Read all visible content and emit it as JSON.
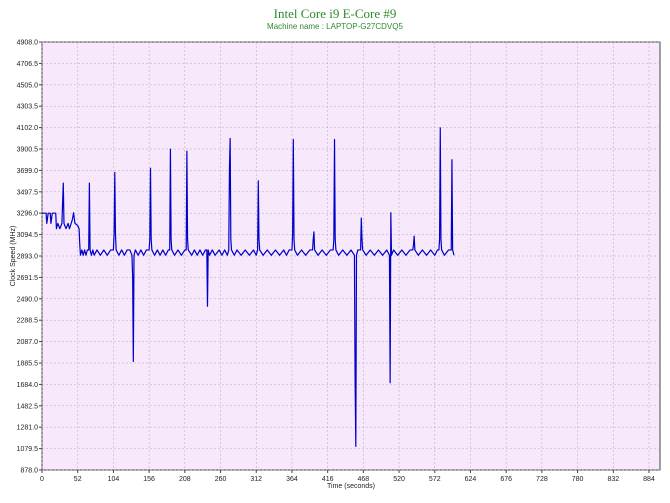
{
  "chart_data": {
    "type": "line",
    "title": "Intel Core i9 E-Core #9",
    "subtitle": "Machine name : LAPTOP-G27CDVQ5",
    "xlabel": "Time (seconds)",
    "ylabel": "Clock Speed (MHz)",
    "xlim": [
      0,
      900
    ],
    "ylim": [
      878.0,
      4908.0
    ],
    "x_ticks": [
      0,
      52,
      104,
      156,
      208,
      260,
      312,
      364,
      416,
      468,
      520,
      572,
      624,
      676,
      728,
      780,
      832,
      884
    ],
    "y_ticks": [
      "878.0",
      "1079.5",
      "1281.0",
      "1482.5",
      "1684.0",
      "1885.5",
      "2087.0",
      "2288.5",
      "2490.0",
      "2691.5",
      "2893.0",
      "3094.5",
      "3296.0",
      "3497.5",
      "3699.0",
      "3900.5",
      "4102.0",
      "4303.5",
      "4505.0",
      "4706.5",
      "4908.0"
    ],
    "grid": true,
    "series": [
      {
        "color": "#0000c8",
        "points": [
          [
            0,
            3296
          ],
          [
            6,
            3296
          ],
          [
            7,
            3200
          ],
          [
            9,
            3296
          ],
          [
            12,
            3296
          ],
          [
            13,
            3200
          ],
          [
            15,
            3296
          ],
          [
            20,
            3296
          ],
          [
            21,
            3150
          ],
          [
            23,
            3200
          ],
          [
            26,
            3150
          ],
          [
            29,
            3200
          ],
          [
            31,
            3580
          ],
          [
            32,
            3200
          ],
          [
            35,
            3150
          ],
          [
            38,
            3200
          ],
          [
            40,
            3150
          ],
          [
            44,
            3230
          ],
          [
            46,
            3300
          ],
          [
            48,
            3200
          ],
          [
            52,
            3180
          ],
          [
            54,
            3150
          ],
          [
            55,
            3000
          ],
          [
            56,
            2900
          ],
          [
            58,
            2950
          ],
          [
            60,
            2900
          ],
          [
            62,
            2950
          ],
          [
            64,
            2900
          ],
          [
            66,
            2950
          ],
          [
            68,
            2950
          ],
          [
            69,
            3580
          ],
          [
            70,
            2950
          ],
          [
            72,
            2900
          ],
          [
            74,
            2950
          ],
          [
            76,
            2900
          ],
          [
            80,
            2950
          ],
          [
            85,
            2900
          ],
          [
            90,
            2950
          ],
          [
            95,
            2900
          ],
          [
            100,
            2950
          ],
          [
            104,
            2950
          ],
          [
            105,
            3100
          ],
          [
            106,
            3680
          ],
          [
            107,
            3100
          ],
          [
            108,
            2950
          ],
          [
            112,
            2900
          ],
          [
            116,
            2950
          ],
          [
            120,
            2900
          ],
          [
            124,
            2950
          ],
          [
            128,
            2950
          ],
          [
            131,
            2900
          ],
          [
            132,
            2700
          ],
          [
            133,
            1900
          ],
          [
            134,
            2900
          ],
          [
            136,
            2950
          ],
          [
            140,
            2900
          ],
          [
            144,
            2950
          ],
          [
            148,
            2900
          ],
          [
            152,
            2950
          ],
          [
            156,
            2950
          ],
          [
            157,
            3050
          ],
          [
            158,
            3720
          ],
          [
            159,
            3050
          ],
          [
            160,
            2950
          ],
          [
            164,
            2900
          ],
          [
            168,
            2950
          ],
          [
            172,
            2900
          ],
          [
            176,
            2950
          ],
          [
            180,
            2900
          ],
          [
            184,
            2950
          ],
          [
            186,
            2950
          ],
          [
            187,
            3900
          ],
          [
            188,
            3050
          ],
          [
            189,
            2950
          ],
          [
            193,
            2900
          ],
          [
            198,
            2950
          ],
          [
            203,
            2900
          ],
          [
            208,
            2950
          ],
          [
            210,
            2950
          ],
          [
            211,
            3880
          ],
          [
            212,
            3050
          ],
          [
            213,
            2950
          ],
          [
            218,
            2900
          ],
          [
            222,
            2950
          ],
          [
            226,
            2900
          ],
          [
            230,
            2950
          ],
          [
            234,
            2900
          ],
          [
            238,
            2950
          ],
          [
            240,
            2950
          ],
          [
            241,
            2420
          ],
          [
            242,
            2950
          ],
          [
            244,
            2900
          ],
          [
            248,
            2950
          ],
          [
            252,
            2900
          ],
          [
            258,
            2950
          ],
          [
            262,
            2900
          ],
          [
            266,
            2950
          ],
          [
            270,
            2900
          ],
          [
            272,
            2950
          ],
          [
            273,
            3720
          ],
          [
            274,
            4000
          ],
          [
            275,
            3050
          ],
          [
            276,
            2950
          ],
          [
            280,
            2900
          ],
          [
            284,
            2950
          ],
          [
            290,
            2900
          ],
          [
            296,
            2950
          ],
          [
            302,
            2900
          ],
          [
            308,
            2950
          ],
          [
            312,
            2900
          ],
          [
            314,
            2950
          ],
          [
            315,
            3600
          ],
          [
            316,
            3050
          ],
          [
            317,
            2950
          ],
          [
            322,
            2900
          ],
          [
            328,
            2950
          ],
          [
            334,
            2900
          ],
          [
            340,
            2950
          ],
          [
            346,
            2900
          ],
          [
            352,
            2950
          ],
          [
            356,
            2900
          ],
          [
            360,
            2950
          ],
          [
            364,
            2950
          ],
          [
            365,
            3100
          ],
          [
            366,
            3990
          ],
          [
            367,
            3050
          ],
          [
            368,
            2950
          ],
          [
            372,
            2900
          ],
          [
            378,
            2950
          ],
          [
            384,
            2900
          ],
          [
            390,
            2950
          ],
          [
            394,
            2950
          ],
          [
            395,
            3050
          ],
          [
            396,
            3120
          ],
          [
            397,
            2950
          ],
          [
            402,
            2900
          ],
          [
            408,
            2950
          ],
          [
            414,
            2900
          ],
          [
            420,
            2950
          ],
          [
            424,
            2950
          ],
          [
            425,
            3050
          ],
          [
            426,
            3990
          ],
          [
            427,
            3050
          ],
          [
            428,
            2950
          ],
          [
            432,
            2900
          ],
          [
            438,
            2950
          ],
          [
            444,
            2900
          ],
          [
            450,
            2950
          ],
          [
            455,
            2900
          ],
          [
            456,
            1700
          ],
          [
            457,
            1100
          ],
          [
            458,
            2900
          ],
          [
            460,
            2950
          ],
          [
            464,
            2950
          ],
          [
            465,
            3250
          ],
          [
            466,
            3050
          ],
          [
            467,
            2950
          ],
          [
            472,
            2900
          ],
          [
            478,
            2950
          ],
          [
            484,
            2900
          ],
          [
            490,
            2950
          ],
          [
            496,
            2900
          ],
          [
            502,
            2950
          ],
          [
            506,
            2900
          ],
          [
            507,
            1700
          ],
          [
            508,
            3300
          ],
          [
            509,
            2900
          ],
          [
            512,
            2950
          ],
          [
            518,
            2900
          ],
          [
            524,
            2950
          ],
          [
            530,
            2900
          ],
          [
            536,
            2950
          ],
          [
            540,
            2950
          ],
          [
            541,
            3000
          ],
          [
            542,
            3080
          ],
          [
            543,
            2950
          ],
          [
            548,
            2900
          ],
          [
            554,
            2950
          ],
          [
            560,
            2900
          ],
          [
            566,
            2950
          ],
          [
            572,
            2900
          ],
          [
            576,
            2950
          ],
          [
            578,
            2950
          ],
          [
            579,
            3050
          ],
          [
            580,
            4100
          ],
          [
            581,
            3050
          ],
          [
            582,
            2950
          ],
          [
            586,
            2900
          ],
          [
            592,
            2950
          ],
          [
            596,
            2950
          ],
          [
            597,
            3800
          ],
          [
            598,
            2950
          ],
          [
            600,
            2900
          ]
        ]
      }
    ]
  }
}
